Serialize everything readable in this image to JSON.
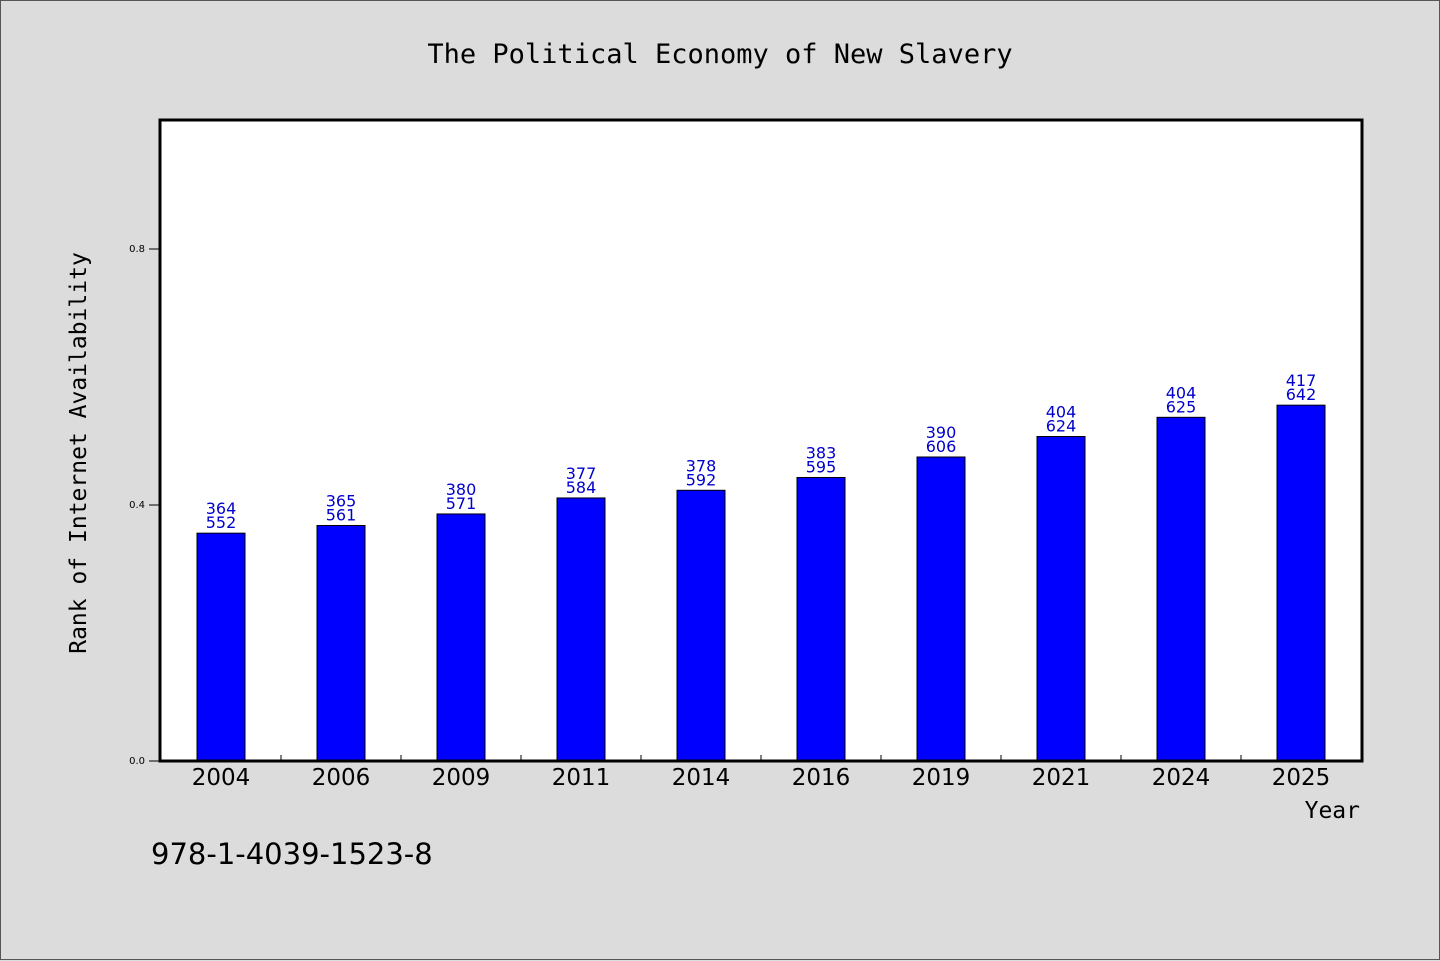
{
  "chart_data": {
    "type": "bar",
    "title": "The Political Economy of New Slavery",
    "xlabel": "Year",
    "ylabel": "Rank of Internet Availability",
    "ylim": [
      0,
      1.0
    ],
    "yticks": [
      "0.0",
      "0.4",
      "0.8"
    ],
    "ytick_values": [
      0.0,
      0.4,
      0.8
    ],
    "grid": false,
    "bar_color": "#0000ff",
    "label_color": "#0000cc",
    "categories": [
      "2004",
      "2006",
      "2009",
      "2011",
      "2014",
      "2016",
      "2019",
      "2021",
      "2024",
      "2025"
    ],
    "values": [
      0.356,
      0.368,
      0.386,
      0.411,
      0.423,
      0.443,
      0.475,
      0.507,
      0.537,
      0.556
    ],
    "labels_top": [
      "364",
      "365",
      "380",
      "377",
      "378",
      "383",
      "390",
      "404",
      "404",
      "417"
    ],
    "labels_bottom": [
      "552",
      "561",
      "571",
      "584",
      "592",
      "595",
      "606",
      "624",
      "625",
      "642"
    ]
  },
  "footer": {
    "isbn": "978-1-4039-1523-8"
  },
  "colors": {
    "background": "#dcdcdc",
    "plot_background": "#ffffff",
    "axis": "#000000"
  }
}
